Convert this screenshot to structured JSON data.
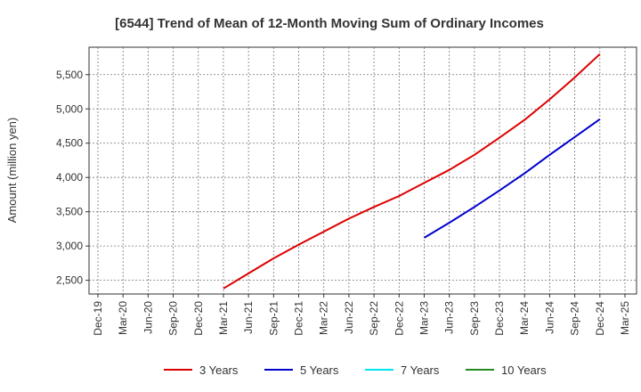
{
  "chart_data": {
    "type": "line",
    "title": "[6544]  Trend of Mean of 12-Month Moving Sum of Ordinary Incomes",
    "xlabel": "",
    "ylabel": "Amount (million yen)",
    "x_ticks": [
      "Dec-19",
      "Mar-20",
      "Jun-20",
      "Sep-20",
      "Dec-20",
      "Mar-21",
      "Jun-21",
      "Sep-21",
      "Dec-21",
      "Mar-22",
      "Jun-22",
      "Sep-22",
      "Dec-22",
      "Mar-23",
      "Jun-23",
      "Sep-23",
      "Dec-23",
      "Mar-24",
      "Jun-24",
      "Sep-24",
      "Dec-24",
      "Mar-25"
    ],
    "y_ticks": [
      2500,
      3000,
      3500,
      4000,
      4500,
      5000,
      5500
    ],
    "ylim": [
      2300,
      5900
    ],
    "grid": true,
    "legend_position": "bottom",
    "series": [
      {
        "name": "3 Years",
        "color": "#dd0000",
        "x": [
          "Mar-21",
          "Jun-21",
          "Sep-21",
          "Dec-21",
          "Mar-22",
          "Jun-22",
          "Sep-22",
          "Dec-22",
          "Mar-23",
          "Jun-23",
          "Sep-23",
          "Dec-23",
          "Mar-24",
          "Jun-24",
          "Sep-24",
          "Dec-24"
        ],
        "values": [
          2380,
          2600,
          2820,
          3020,
          3210,
          3400,
          3570,
          3730,
          3920,
          4110,
          4330,
          4580,
          4840,
          5140,
          5460,
          5800
        ]
      },
      {
        "name": "5 Years",
        "color": "#0000cc",
        "x": [
          "Mar-23",
          "Jun-23",
          "Sep-23",
          "Dec-23",
          "Mar-24",
          "Jun-24",
          "Sep-24",
          "Dec-24"
        ],
        "values": [
          3120,
          3340,
          3570,
          3810,
          4060,
          4330,
          4590,
          4850
        ]
      },
      {
        "name": "7 Years",
        "color": "#00e5ee",
        "x": [],
        "values": []
      },
      {
        "name": "10 Years",
        "color": "#228b22",
        "x": [],
        "values": []
      }
    ]
  }
}
